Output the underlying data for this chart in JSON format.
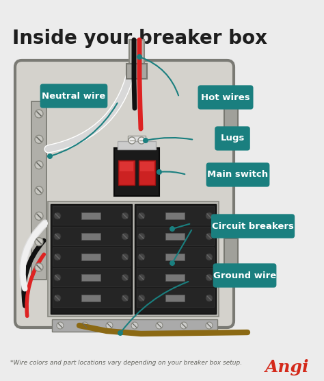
{
  "title": "Inside your breaker box",
  "bg_color": "#ececec",
  "panel_color": "#d4d2cc",
  "panel_border_color": "#888880",
  "dark_color": "#1e1e1e",
  "teal_color": "#1a7f7f",
  "red_color": "#cc2222",
  "orange_brown": "#8B6914",
  "angi_red": "#d4291a",
  "footnote": "*Wire colors and part locations vary depending on your breaker box setup.",
  "labels": {
    "neutral_wire": "Neutral wire",
    "hot_wires": "Hot wires",
    "lugs": "Lugs",
    "main_switch": "Main switch",
    "circuit_breakers": "Circuit breakers",
    "ground_wire": "Ground wire"
  }
}
